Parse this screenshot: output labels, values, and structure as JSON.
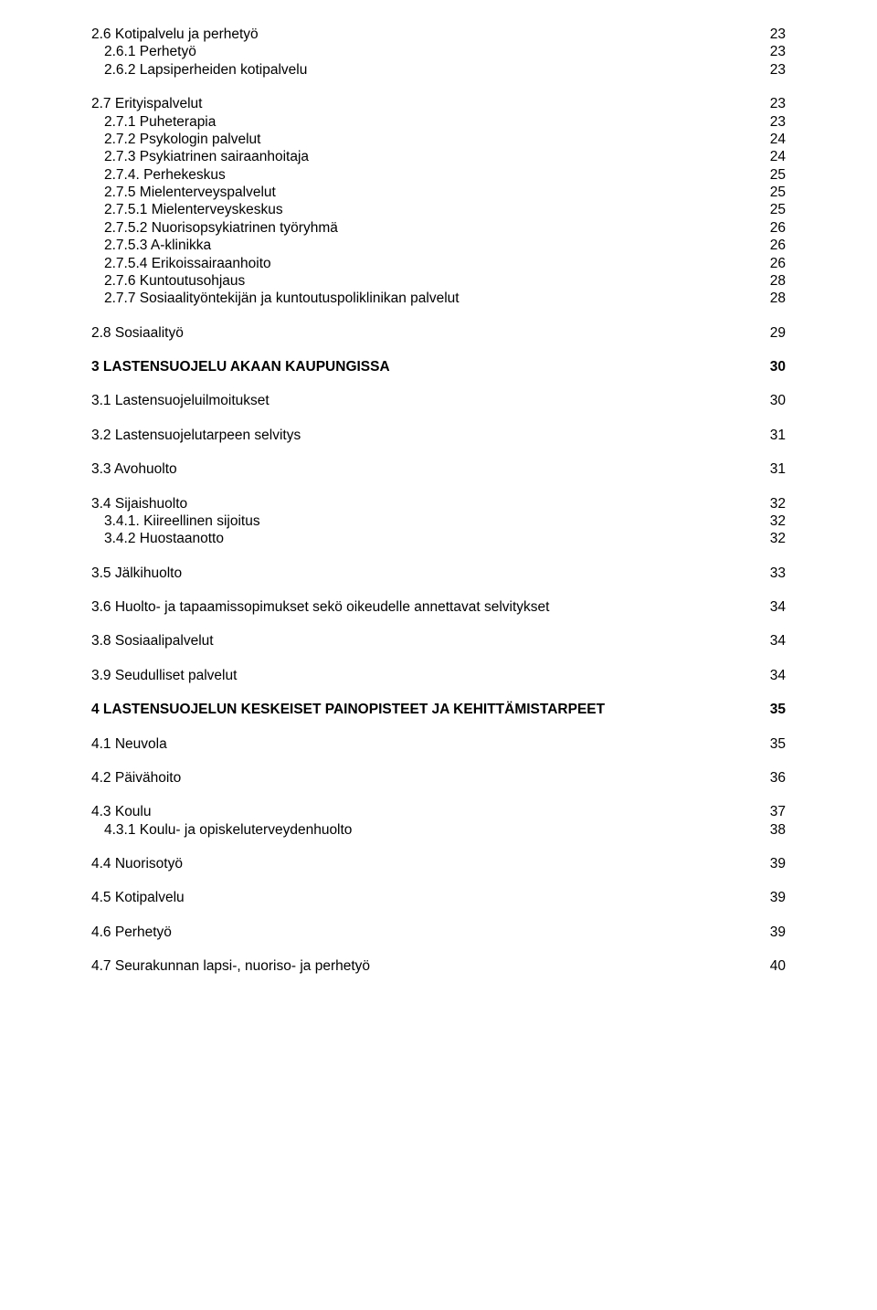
{
  "sections": [
    {
      "rows": [
        {
          "label": "2.6 Kotipalvelu ja perhetyö",
          "page": "23"
        },
        {
          "label": "2.6.1 Perhetyö",
          "page": "23",
          "indent": 1
        },
        {
          "label": "2.6.2 Lapsiperheiden kotipalvelu",
          "page": "23",
          "indent": 1
        }
      ]
    },
    {
      "rows": [
        {
          "label": "2.7 Erityispalvelut",
          "page": "23"
        },
        {
          "label": "2.7.1 Puheterapia",
          "page": "23",
          "indent": 1
        },
        {
          "label": "2.7.2 Psykologin palvelut",
          "page": "24",
          "indent": 1
        },
        {
          "label": "2.7.3 Psykiatrinen sairaanhoitaja",
          "page": "24",
          "indent": 1
        },
        {
          "label": "2.7.4. Perhekeskus",
          "page": "25",
          "indent": 1
        },
        {
          "label": "2.7.5 Mielenterveyspalvelut",
          "page": "25",
          "indent": 1
        },
        {
          "label": "2.7.5.1 Mielenterveyskeskus",
          "page": "25",
          "indent": 1
        },
        {
          "label": "2.7.5.2 Nuorisopsykiatrinen työryhmä",
          "page": "26",
          "indent": 1
        },
        {
          "label": "2.7.5.3 A-klinikka",
          "page": "26",
          "indent": 1
        },
        {
          "label": "2.7.5.4 Erikoissairaanhoito",
          "page": "26",
          "indent": 1
        },
        {
          "label": "2.7.6 Kuntoutusohjaus",
          "page": "28",
          "indent": 1
        },
        {
          "label": "2.7.7 Sosiaalityöntekijän ja kuntoutuspoliklinikan palvelut",
          "page": "28",
          "indent": 1
        }
      ]
    },
    {
      "rows": [
        {
          "label": "2.8 Sosiaalityö",
          "page": "29"
        }
      ]
    },
    {
      "rows": [
        {
          "label": "3 LASTENSUOJELU AKAAN KAUPUNGISSA",
          "page": "30",
          "bold": true
        }
      ]
    },
    {
      "rows": [
        {
          "label": "3.1 Lastensuojeluilmoitukset",
          "page": "30"
        }
      ]
    },
    {
      "rows": [
        {
          "label": "3.2 Lastensuojelutarpeen selvitys",
          "page": "31"
        }
      ]
    },
    {
      "rows": [
        {
          "label": "3.3 Avohuolto",
          "page": "31"
        }
      ]
    },
    {
      "rows": [
        {
          "label": "3.4 Sijaishuolto",
          "page": "32"
        },
        {
          "label": "3.4.1. Kiireellinen sijoitus",
          "page": "32",
          "indent": 1
        },
        {
          "label": "3.4.2 Huostaanotto",
          "page": "32",
          "indent": 1
        }
      ]
    },
    {
      "rows": [
        {
          "label": "3.5 Jälkihuolto",
          "page": "33"
        }
      ]
    },
    {
      "rows": [
        {
          "label": "3.6 Huolto- ja tapaamissopimukset sekö oikeudelle annettavat selvitykset",
          "page": "34"
        }
      ]
    },
    {
      "rows": [
        {
          "label": "3.8 Sosiaalipalvelut",
          "page": "34"
        }
      ]
    },
    {
      "rows": [
        {
          "label": "3.9 Seudulliset palvelut",
          "page": "34"
        }
      ]
    },
    {
      "rows": [
        {
          "label": "4 LASTENSUOJELUN KESKEISET PAINOPISTEET JA KEHITTÄMISTARPEET",
          "page": "35",
          "bold": true
        }
      ]
    },
    {
      "rows": [
        {
          "label": "4.1 Neuvola",
          "page": "35"
        }
      ]
    },
    {
      "rows": [
        {
          "label": "4.2 Päivähoito",
          "page": "36"
        }
      ]
    },
    {
      "rows": [
        {
          "label": "4.3 Koulu",
          "page": "37"
        },
        {
          "label": "4.3.1 Koulu- ja opiskeluterveydenhuolto",
          "page": "38",
          "indent": 1
        }
      ]
    },
    {
      "rows": [
        {
          "label": "4.4 Nuorisotyö",
          "page": "39"
        }
      ]
    },
    {
      "rows": [
        {
          "label": "4.5 Kotipalvelu",
          "page": "39"
        }
      ]
    },
    {
      "rows": [
        {
          "label": "4.6 Perhetyö",
          "page": "39"
        }
      ]
    },
    {
      "rows": [
        {
          "label": "4.7 Seurakunnan lapsi-, nuoriso- ja perhetyö",
          "page": "40"
        }
      ]
    }
  ]
}
